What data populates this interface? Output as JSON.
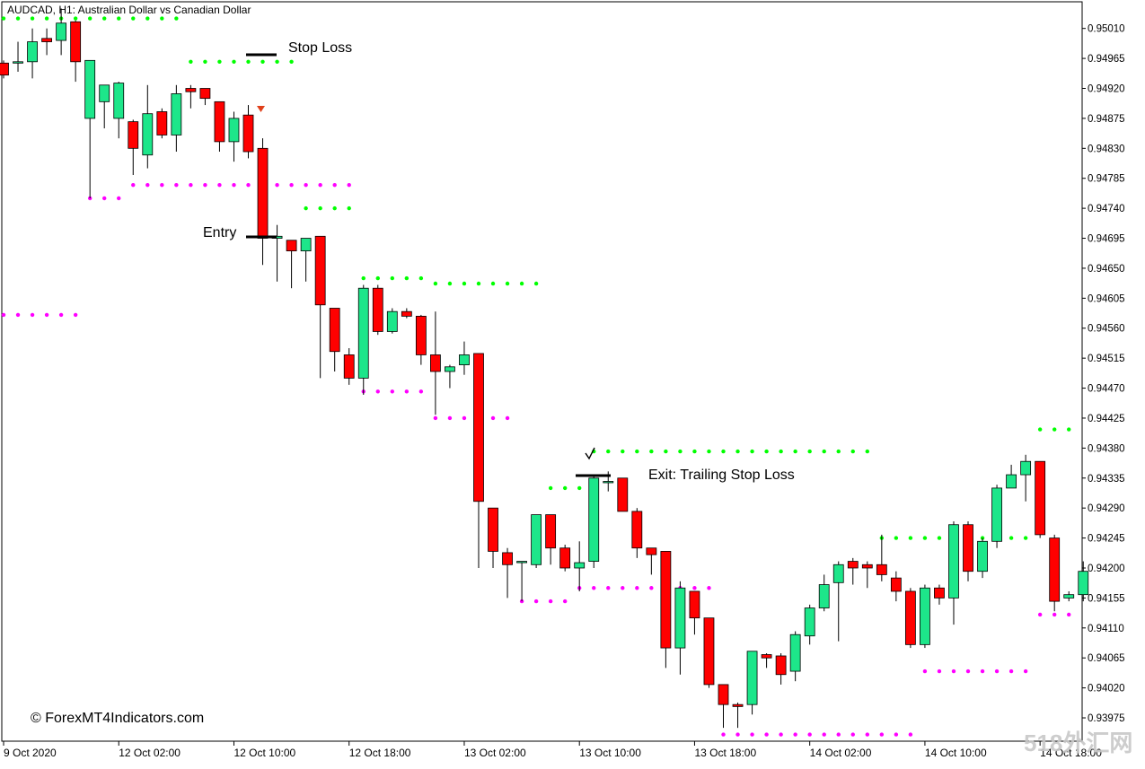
{
  "header": {
    "symbol_label": "AUDCAD, H1:  Australian Dollar vs Canadian Dollar"
  },
  "annotations": {
    "stop_loss": "Stop Loss",
    "entry": "Entry",
    "exit": "Exit: Trailing Stop Loss",
    "copyright": "© ForexMT4Indicators.com",
    "watermark": "518外汇网"
  },
  "colors": {
    "bull": "#1de68a",
    "bear": "#ff0000",
    "resistance_dots": "#00ff00",
    "support_dots": "#ff00ff",
    "arrow": "#e0401a",
    "axis": "#000000"
  },
  "chart_data": {
    "type": "candlestick",
    "ylim": [
      0.9394,
      0.9505
    ],
    "y_ticks": [
      "0.95010",
      "0.94965",
      "0.94920",
      "0.94875",
      "0.94830",
      "0.94785",
      "0.94740",
      "0.94695",
      "0.94650",
      "0.94605",
      "0.94560",
      "0.94515",
      "0.94470",
      "0.94425",
      "0.94380",
      "0.94335",
      "0.94290",
      "0.94245",
      "0.94200",
      "0.94155",
      "0.94110",
      "0.94065",
      "0.94020",
      "0.93975"
    ],
    "x_labels": [
      "9 Oct 2020",
      "12 Oct 02:00",
      "12 Oct 10:00",
      "12 Oct 18:00",
      "13 Oct 02:00",
      "13 Oct 10:00",
      "13 Oct 18:00",
      "14 Oct 02:00",
      "14 Oct 10:00",
      "14 Oct 18:00"
    ],
    "candles": [
      [
        0.94958,
        0.9494,
        0.94962,
        0.94935
      ],
      [
        0.9496,
        0.9496,
        0.9499,
        0.94945
      ],
      [
        0.9496,
        0.9499,
        0.9501,
        0.94935
      ],
      [
        0.94995,
        0.9499,
        0.9501,
        0.9497
      ],
      [
        0.94992,
        0.95018,
        0.9504,
        0.9497
      ],
      [
        0.9502,
        0.9496,
        0.95022,
        0.9493
      ],
      [
        0.94875,
        0.94962,
        0.94925,
        0.94755
      ],
      [
        0.949,
        0.94925,
        0.94925,
        0.9486
      ],
      [
        0.94875,
        0.94928,
        0.9493,
        0.94845
      ],
      [
        0.9487,
        0.9483,
        0.94873,
        0.9479
      ],
      [
        0.9482,
        0.94882,
        0.94925,
        0.948
      ],
      [
        0.94885,
        0.9485,
        0.9489,
        0.94845
      ],
      [
        0.9485,
        0.94912,
        0.94925,
        0.94825
      ],
      [
        0.9492,
        0.94915,
        0.94925,
        0.9489
      ],
      [
        0.9492,
        0.94905,
        0.94915,
        0.94895
      ],
      [
        0.949,
        0.9484,
        0.949,
        0.94825
      ],
      [
        0.9484,
        0.94875,
        0.94885,
        0.9481
      ],
      [
        0.9488,
        0.94825,
        0.94895,
        0.94815
      ],
      [
        0.9483,
        0.94695,
        0.94845,
        0.94655
      ],
      [
        0.94695,
        0.94698,
        0.94715,
        0.9463
      ],
      [
        0.94692,
        0.94676,
        0.94692,
        0.9462
      ],
      [
        0.94676,
        0.94695,
        0.94695,
        0.9463
      ],
      [
        0.94698,
        0.94595,
        0.94698,
        0.94485
      ],
      [
        0.9459,
        0.94525,
        0.9459,
        0.94495
      ],
      [
        0.9452,
        0.94485,
        0.9453,
        0.94475
      ],
      [
        0.94485,
        0.9462,
        0.94625,
        0.9446
      ],
      [
        0.9462,
        0.94555,
        0.94625,
        0.9455
      ],
      [
        0.94555,
        0.94585,
        0.9459,
        0.94552
      ],
      [
        0.94585,
        0.94578,
        0.9459,
        0.94575
      ],
      [
        0.94578,
        0.9452,
        0.9458,
        0.94505
      ],
      [
        0.9452,
        0.94495,
        0.94585,
        0.9443
      ],
      [
        0.94495,
        0.94502,
        0.94505,
        0.9447
      ],
      [
        0.94505,
        0.9452,
        0.9454,
        0.9449
      ],
      [
        0.94522,
        0.943,
        0.94522,
        0.942
      ],
      [
        0.9429,
        0.94225,
        0.9429,
        0.942
      ],
      [
        0.94223,
        0.94205,
        0.9423,
        0.94155
      ],
      [
        0.9421,
        0.9421,
        0.9421,
        0.9415
      ],
      [
        0.94205,
        0.9428,
        0.9428,
        0.942
      ],
      [
        0.9428,
        0.9423,
        0.9428,
        0.94205
      ],
      [
        0.9423,
        0.942,
        0.94235,
        0.94195
      ],
      [
        0.942,
        0.94208,
        0.9424,
        0.94165
      ],
      [
        0.9421,
        0.94335,
        0.9434,
        0.942
      ],
      [
        0.9433,
        0.9433,
        0.94345,
        0.94315
      ],
      [
        0.94335,
        0.94285,
        0.94335,
        0.94285
      ],
      [
        0.94285,
        0.9423,
        0.9429,
        0.94215
      ],
      [
        0.9423,
        0.9422,
        0.94225,
        0.9419
      ],
      [
        0.94225,
        0.9408,
        0.94225,
        0.9405
      ],
      [
        0.9408,
        0.9417,
        0.9418,
        0.9404
      ],
      [
        0.94165,
        0.94125,
        0.94165,
        0.941
      ],
      [
        0.94125,
        0.94025,
        0.94125,
        0.9402
      ],
      [
        0.94025,
        0.93995,
        0.94025,
        0.9396
      ],
      [
        0.93995,
        0.93992,
        0.93998,
        0.9396
      ],
      [
        0.93995,
        0.94075,
        0.94075,
        0.9398
      ],
      [
        0.9407,
        0.94065,
        0.94072,
        0.9405
      ],
      [
        0.94068,
        0.9404,
        0.94072,
        0.94025
      ],
      [
        0.94045,
        0.941,
        0.94105,
        0.9403
      ],
      [
        0.94098,
        0.9414,
        0.94145,
        0.94085
      ],
      [
        0.9414,
        0.94175,
        0.9419,
        0.94135
      ],
      [
        0.94178,
        0.94205,
        0.9421,
        0.9409
      ],
      [
        0.9421,
        0.942,
        0.94215,
        0.94175
      ],
      [
        0.94205,
        0.942,
        0.9421,
        0.9417
      ],
      [
        0.94205,
        0.9419,
        0.9425,
        0.9418
      ],
      [
        0.94185,
        0.94165,
        0.94195,
        0.9415
      ],
      [
        0.94165,
        0.94085,
        0.9417,
        0.9408
      ],
      [
        0.94085,
        0.9417,
        0.94175,
        0.9408
      ],
      [
        0.9417,
        0.94155,
        0.94175,
        0.94145
      ],
      [
        0.94155,
        0.94265,
        0.9427,
        0.94115
      ],
      [
        0.94265,
        0.94195,
        0.9427,
        0.9418
      ],
      [
        0.94195,
        0.9424,
        0.94245,
        0.94185
      ],
      [
        0.9424,
        0.9432,
        0.94325,
        0.9423
      ],
      [
        0.9432,
        0.9434,
        0.94355,
        0.94325
      ],
      [
        0.9434,
        0.9436,
        0.9437,
        0.943
      ],
      [
        0.9436,
        0.9425,
        0.9436,
        0.94245
      ],
      [
        0.94245,
        0.9415,
        0.9425,
        0.94135
      ],
      [
        0.94155,
        0.9416,
        0.94165,
        0.9415
      ],
      [
        0.9416,
        0.94195,
        0.9421,
        0.9415
      ]
    ],
    "resistance_levels": [
      {
        "from": 0,
        "to": 12,
        "value": 0.95025
      },
      {
        "from": 13,
        "to": 20,
        "value": 0.9496
      },
      {
        "from": 21,
        "to": 24,
        "value": 0.9474
      },
      {
        "from": 25,
        "to": 29,
        "value": 0.94635
      },
      {
        "from": 30,
        "to": 37,
        "value": 0.94627
      },
      {
        "from": 38,
        "to": 40,
        "value": 0.9432
      },
      {
        "from": 41,
        "to": 60,
        "value": 0.94375
      },
      {
        "from": 61,
        "to": 71,
        "value": 0.94245
      },
      {
        "from": 72,
        "to": 74,
        "value": 0.94408
      }
    ],
    "support_levels": [
      {
        "from": 0,
        "to": 5,
        "value": 0.9458
      },
      {
        "from": 6,
        "to": 8,
        "value": 0.94755
      },
      {
        "from": 9,
        "to": 24,
        "value": 0.94775
      },
      {
        "from": 25,
        "to": 29,
        "value": 0.94465
      },
      {
        "from": 30,
        "to": 35,
        "value": 0.94425
      },
      {
        "from": 36,
        "to": 39,
        "value": 0.9415
      },
      {
        "from": 40,
        "to": 49,
        "value": 0.9417
      },
      {
        "from": 50,
        "to": 63,
        "value": 0.9395
      },
      {
        "from": 64,
        "to": 71,
        "value": 0.94045
      },
      {
        "from": 72,
        "to": 74,
        "value": 0.9413
      }
    ]
  }
}
